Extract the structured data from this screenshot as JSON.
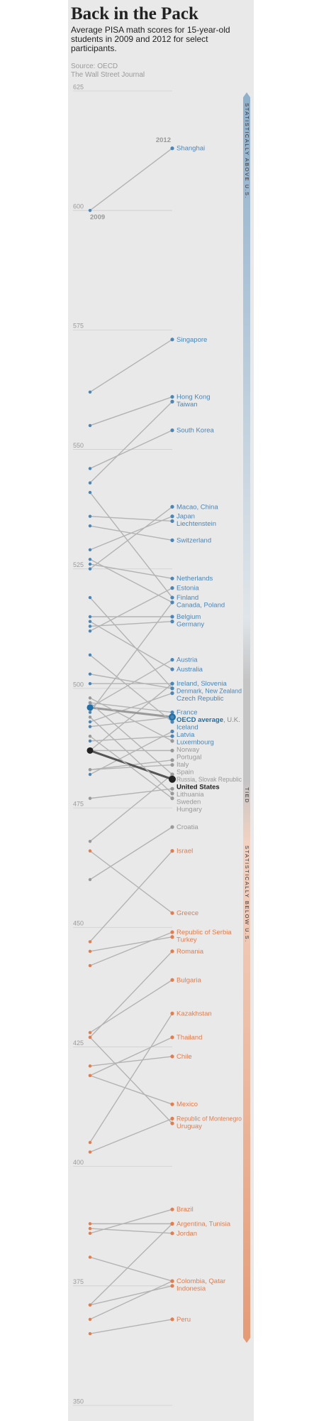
{
  "chart_data": {
    "type": "slope",
    "title": "Back in the Pack",
    "subtitle": "Average PISA math scores for 15-year-old students in 2009 and 2012 for select participants.",
    "source": "Source: OECD",
    "credit": "The Wall Street Journal",
    "categories": [
      "2009",
      "2012"
    ],
    "ylim": [
      350,
      625
    ],
    "yticks": [
      625,
      600,
      575,
      550,
      525,
      500,
      475,
      450,
      425,
      400,
      375,
      350
    ],
    "grid": true,
    "line_color": "#b3b3b3",
    "band_labels": [
      "STATISTICALLY ABOVE U.S.",
      "TIED",
      "STATISTICALLY BELOW U.S."
    ],
    "series": [
      {
        "name": "Shanghai",
        "values": [
          600,
          613
        ],
        "color": "#4a86b8"
      },
      {
        "name": "Singapore",
        "values": [
          562,
          573
        ],
        "color": "#4a86b8"
      },
      {
        "name": "Hong Kong",
        "values": [
          555,
          561
        ],
        "color": "#4a86b8"
      },
      {
        "name": "Taiwan",
        "values": [
          543,
          560
        ],
        "color": "#4a86b8"
      },
      {
        "name": "South Korea",
        "values": [
          546,
          554
        ],
        "color": "#4a86b8"
      },
      {
        "name": "Macao, China",
        "values": [
          525,
          538
        ],
        "color": "#4a86b8"
      },
      {
        "name": "Japan",
        "values": [
          529,
          536
        ],
        "color": "#4a86b8"
      },
      {
        "name": "Liechtenstein",
        "values": [
          536,
          535
        ],
        "color": "#4a86b8"
      },
      {
        "name": "Switzerland",
        "values": [
          534,
          531
        ],
        "color": "#4a86b8"
      },
      {
        "name": "Netherlands",
        "values": [
          526,
          523
        ],
        "color": "#4a86b8"
      },
      {
        "name": "Estonia",
        "values": [
          512,
          521
        ],
        "color": "#4a86b8"
      },
      {
        "name": "Finland",
        "values": [
          541,
          519
        ],
        "color": "#4a86b8"
      },
      {
        "name": "Canada, Poland",
        "values": [
          527,
          518
        ],
        "color": "#4a86b8"
      },
      {
        "name": null,
        "values": [
          495,
          518
        ],
        "color": "#4a86b8"
      },
      {
        "name": "Belgium",
        "values": [
          515,
          515
        ],
        "color": "#4a86b8"
      },
      {
        "name": "Germany",
        "values": [
          513,
          514
        ],
        "color": "#4a86b8"
      },
      {
        "name": "Austria",
        "values": [
          496,
          506
        ],
        "color": "#4a86b8"
      },
      {
        "name": "Australia",
        "values": [
          514,
          504
        ],
        "color": "#4a86b8"
      },
      {
        "name": "Ireland, Slovenia",
        "values": [
          487,
          501
        ],
        "color": "#4a86b8"
      },
      {
        "name": null,
        "values": [
          501,
          501
        ],
        "color": "#4a86b8"
      },
      {
        "name": "Denmark, New Zealand",
        "values": [
          503,
          500
        ],
        "color": "#4a86b8"
      },
      {
        "name": null,
        "values": [
          519,
          500
        ],
        "color": "#4a86b8"
      },
      {
        "name": "Czech Republic",
        "values": [
          493,
          499
        ],
        "color": "#4a86b8"
      },
      {
        "name": "France",
        "values": [
          497,
          495
        ],
        "color": "#4a86b8"
      },
      {
        "name": "OECD average",
        "values": [
          496,
          494
        ],
        "color": "#1f6fa8",
        "bold": true
      },
      {
        "name": ", U.K.",
        "values": [
          492,
          494
        ],
        "color": "#4a86b8"
      },
      {
        "name": "Iceland",
        "values": [
          507,
          493
        ],
        "color": "#4a86b8"
      },
      {
        "name": "Latvia",
        "values": [
          482,
          491
        ],
        "color": "#4a86b8"
      },
      {
        "name": "Luxembourg",
        "values": [
          489,
          490
        ],
        "color": "#4a86b8"
      },
      {
        "name": "Norway",
        "values": [
          498,
          489
        ],
        "color": "#999999"
      },
      {
        "name": "Portugal",
        "values": [
          487,
          487
        ],
        "color": "#999999"
      },
      {
        "name": "Italy",
        "values": [
          483,
          485
        ],
        "color": "#999999"
      },
      {
        "name": "Spain",
        "values": [
          483,
          484
        ],
        "color": "#999999"
      },
      {
        "name": "Russia, Slovak Republic",
        "values": [
          468,
          482
        ],
        "color": "#999999"
      },
      {
        "name": null,
        "values": [
          497,
          482
        ],
        "color": "#999999"
      },
      {
        "name": "United States",
        "values": [
          487,
          481
        ],
        "color": "#222222",
        "bold": true
      },
      {
        "name": "Lithuania",
        "values": [
          477,
          479
        ],
        "color": "#999999"
      },
      {
        "name": "Sweden",
        "values": [
          494,
          478
        ],
        "color": "#999999"
      },
      {
        "name": "Hungary",
        "values": [
          490,
          477
        ],
        "color": "#999999"
      },
      {
        "name": "Croatia",
        "values": [
          460,
          471
        ],
        "color": "#999999"
      },
      {
        "name": "Israel",
        "values": [
          447,
          466
        ],
        "color": "#e47c4c"
      },
      {
        "name": "Greece",
        "values": [
          466,
          453
        ],
        "color": "#e47c4c"
      },
      {
        "name": "Republic of Serbia",
        "values": [
          442,
          449
        ],
        "color": "#e47c4c"
      },
      {
        "name": "Turkey",
        "values": [
          445,
          448
        ],
        "color": "#e47c4c"
      },
      {
        "name": "Romania",
        "values": [
          427,
          445
        ],
        "color": "#e47c4c"
      },
      {
        "name": "Bulgaria",
        "values": [
          428,
          439
        ],
        "color": "#e47c4c"
      },
      {
        "name": "Kazakhstan",
        "values": [
          405,
          432
        ],
        "color": "#e47c4c"
      },
      {
        "name": "Thailand",
        "values": [
          419,
          427
        ],
        "color": "#e47c4c"
      },
      {
        "name": "Chile",
        "values": [
          421,
          423
        ],
        "color": "#e47c4c"
      },
      {
        "name": "Mexico",
        "values": [
          419,
          413
        ],
        "color": "#e47c4c"
      },
      {
        "name": "Republic of Montenegro",
        "values": [
          403,
          410
        ],
        "color": "#e47c4c"
      },
      {
        "name": "Uruguay",
        "values": [
          427,
          409
        ],
        "color": "#e47c4c"
      },
      {
        "name": "Brazil",
        "values": [
          386,
          391
        ],
        "color": "#e47c4c"
      },
      {
        "name": "Argentina, Tunisia",
        "values": [
          388,
          388
        ],
        "color": "#e47c4c"
      },
      {
        "name": null,
        "values": [
          371,
          388
        ],
        "color": "#e47c4c"
      },
      {
        "name": "Jordan",
        "values": [
          387,
          386
        ],
        "color": "#e47c4c"
      },
      {
        "name": "Colombia, Qatar",
        "values": [
          381,
          376
        ],
        "color": "#e47c4c"
      },
      {
        "name": null,
        "values": [
          368,
          376
        ],
        "color": "#e47c4c"
      },
      {
        "name": "Indonesia",
        "values": [
          371,
          375
        ],
        "color": "#e47c4c"
      },
      {
        "name": "Peru",
        "values": [
          365,
          368
        ],
        "color": "#e47c4c"
      }
    ]
  }
}
